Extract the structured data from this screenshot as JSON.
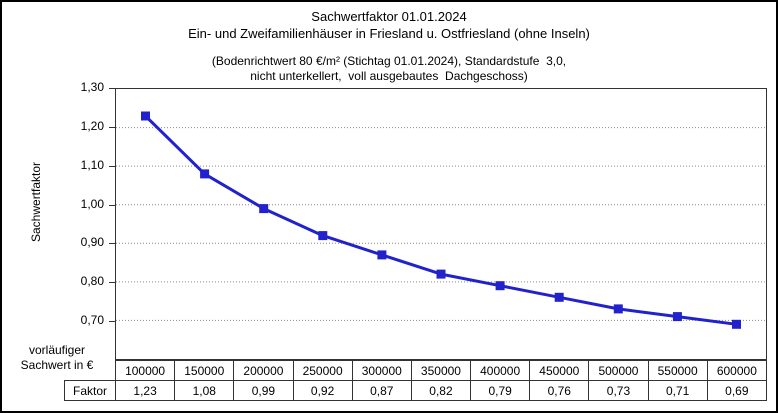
{
  "titles": {
    "line1": "Sachwertfaktor 01.01.2024",
    "line2": "Ein- und Zweifamilienhäuser in Friesland u. Ostfriesland (ohne Inseln)",
    "line3": "(Bodenrichtwert 80 €/m² (Stichtag 01.01.2024), Standardstufe  3,0,",
    "line4": "nicht unterkellert,  voll ausgebautes  Dachgeschoss)"
  },
  "axis": {
    "x_title": "vorläufiger\nSachwert in €"
  },
  "chart_data": {
    "type": "line",
    "title": "Sachwertfaktor 01.01.2024",
    "subtitle": "Ein- und Zweifamilienhäuser in Friesland u. Ostfriesland (ohne Inseln)",
    "note": "(Bodenrichtwert 80 €/m² (Stichtag 01.01.2024), Standardstufe 3,0, nicht unterkellert, voll ausgebautes Dachgeschoss)",
    "xlabel": "vorläufiger Sachwert in €",
    "ylabel": "Sachwertfaktor",
    "categories": [
      100000,
      150000,
      200000,
      250000,
      300000,
      350000,
      400000,
      450000,
      500000,
      550000,
      600000
    ],
    "category_labels": [
      "100000",
      "150000",
      "200000",
      "250000",
      "300000",
      "350000",
      "400000",
      "450000",
      "500000",
      "550000",
      "600000"
    ],
    "series": [
      {
        "name": "Faktor",
        "values": [
          1.23,
          1.08,
          0.99,
          0.92,
          0.87,
          0.82,
          0.79,
          0.76,
          0.73,
          0.71,
          0.69
        ],
        "value_labels": [
          "1,23",
          "1,08",
          "0,99",
          "0,92",
          "0,87",
          "0,82",
          "0,79",
          "0,76",
          "0,73",
          "0,71",
          "0,69"
        ]
      }
    ],
    "ylim": [
      0.6,
      1.3
    ],
    "ytick_labels": [
      "1,30",
      "1,20",
      "1,10",
      "1,00",
      "0,90",
      "0,80",
      "0,70"
    ],
    "gridlines": [
      1.2,
      1.1,
      1.0,
      0.9,
      0.8,
      0.7
    ],
    "grid_style": "horizontal-dotted",
    "legend": "none (series name shown in data table)",
    "colors": {
      "line": "#2222CC",
      "marker": "#2222CC",
      "grid": "#8a8a8a",
      "axis": "#333333",
      "text": "#000000",
      "background": "#ffffff"
    },
    "marker": "square"
  }
}
